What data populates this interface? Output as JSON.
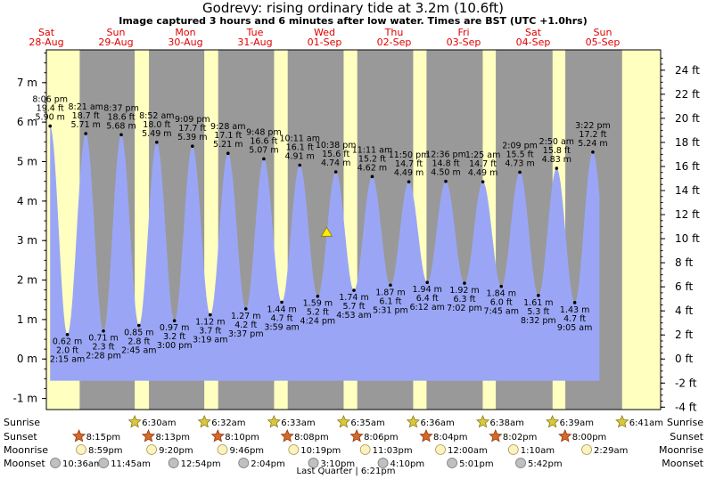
{
  "chart_data": {
    "type": "area",
    "title": "Godrevy: rising  ordinary tide at 3.2m (10.6ft)",
    "subtitle": "Image captured 3 hours and 6 minutes after low water. Times are BST (UTC +1.0hrs)",
    "y_left_ticks": [
      "-1 m",
      "0 m",
      "1 m",
      "2 m",
      "3 m",
      "4 m",
      "5 m",
      "6 m",
      "7 m"
    ],
    "y_left_values": [
      -1,
      0,
      1,
      2,
      3,
      4,
      5,
      6,
      7
    ],
    "y_right_ticks": [
      "-4 ft",
      "-2 ft",
      "0 ft",
      "2 ft",
      "4 ft",
      "6 ft",
      "8 ft",
      "10 ft",
      "12 ft",
      "14 ft",
      "16 ft",
      "18 ft",
      "20 ft",
      "22 ft",
      "24 ft"
    ],
    "y_right_values": [
      -4,
      -2,
      0,
      2,
      4,
      6,
      8,
      10,
      12,
      14,
      16,
      18,
      20,
      22,
      24
    ],
    "ylim_m": [
      -1.28,
      7.83
    ],
    "xlim_hours": [
      0,
      212
    ],
    "days": [
      {
        "name": "Sat",
        "date": "28-Aug"
      },
      {
        "name": "Sun",
        "date": "29-Aug"
      },
      {
        "name": "Mon",
        "date": "30-Aug"
      },
      {
        "name": "Tue",
        "date": "31-Aug"
      },
      {
        "name": "Wed",
        "date": "01-Sep"
      },
      {
        "name": "Thu",
        "date": "02-Sep"
      },
      {
        "name": "Fri",
        "date": "03-Sep"
      },
      {
        "name": "Sat",
        "date": "04-Sep"
      },
      {
        "name": "Sun",
        "date": "05-Sep"
      }
    ],
    "day_starts_h": [
      0,
      24,
      48,
      72,
      96,
      120,
      144,
      168,
      192
    ],
    "night_periods_h": [
      [
        11.5,
        30.5
      ],
      [
        35.4,
        54.5
      ],
      [
        59.3,
        78.6
      ],
      [
        83.3,
        102.6
      ],
      [
        107.3,
        126.6
      ],
      [
        131.2,
        150.6
      ],
      [
        155.1,
        174.7
      ],
      [
        179.1,
        198.7
      ]
    ],
    "series": [
      {
        "name": "Tide",
        "points": [
          {
            "h": 1.3,
            "m": 5.9,
            "time": "8:06 pm",
            "ft": "19.4 ft",
            "height": "5.90 m",
            "type": "high"
          },
          {
            "h": 7.25,
            "m": 0.62,
            "time": "2:15 am",
            "ft": "2.0 ft",
            "height": "0.62 m",
            "type": "low"
          },
          {
            "h": 13.6,
            "m": 5.71,
            "time": "8:21 am",
            "ft": "18.7 ft",
            "height": "5.71 m",
            "type": "high"
          },
          {
            "h": 19.7,
            "m": 0.71,
            "time": "2:28 pm",
            "ft": "2.3 ft",
            "height": "0.71 m",
            "type": "low"
          },
          {
            "h": 25.85,
            "m": 5.68,
            "time": "8:37 pm",
            "ft": "18.6 ft",
            "height": "5.68 m",
            "type": "high"
          },
          {
            "h": 31.95,
            "m": 0.85,
            "time": "2:45 am",
            "ft": "2.8 ft",
            "height": "0.85 m",
            "type": "low"
          },
          {
            "h": 38.1,
            "m": 5.49,
            "time": "8:52 am",
            "ft": "18.0 ft",
            "height": "5.49 m",
            "type": "high"
          },
          {
            "h": 44.2,
            "m": 0.97,
            "time": "3:00 pm",
            "ft": "3.2 ft",
            "height": "0.97 m",
            "type": "low"
          },
          {
            "h": 50.4,
            "m": 5.39,
            "time": "9:09 pm",
            "ft": "17.7 ft",
            "height": "5.39 m",
            "type": "high"
          },
          {
            "h": 56.55,
            "m": 1.12,
            "time": "3:19 am",
            "ft": "3.7 ft",
            "height": "1.12 m",
            "type": "low"
          },
          {
            "h": 62.7,
            "m": 5.21,
            "time": "9:28 am",
            "ft": "17.1 ft",
            "height": "5.21 m",
            "type": "high"
          },
          {
            "h": 68.85,
            "m": 1.27,
            "time": "3:37 pm",
            "ft": "4.2 ft",
            "height": "1.27 m",
            "type": "low"
          },
          {
            "h": 75.05,
            "m": 5.07,
            "time": "9:48 pm",
            "ft": "16.6 ft",
            "height": "5.07 m",
            "type": "high"
          },
          {
            "h": 81.25,
            "m": 1.44,
            "time": "3:59 am",
            "ft": "4.7 ft",
            "height": "1.44 m",
            "type": "low"
          },
          {
            "h": 87.45,
            "m": 4.91,
            "time": "10:11 am",
            "ft": "16.1 ft",
            "height": "4.91 m",
            "type": "high"
          },
          {
            "h": 93.65,
            "m": 1.59,
            "time": "4:24 pm",
            "ft": "5.2 ft",
            "height": "1.59 m",
            "type": "low"
          },
          {
            "h": 99.9,
            "m": 4.74,
            "time": "10:38 pm",
            "ft": "15.6 ft",
            "height": "4.74 m",
            "type": "high"
          },
          {
            "h": 106.15,
            "m": 1.74,
            "time": "4:53 am",
            "ft": "5.7 ft",
            "height": "1.74 m",
            "type": "low"
          },
          {
            "h": 112.45,
            "m": 4.62,
            "time": "11:11 am",
            "ft": "15.2 ft",
            "height": "4.62 m",
            "type": "high"
          },
          {
            "h": 118.75,
            "m": 1.87,
            "time": "5:31 pm",
            "ft": "6.1 ft",
            "height": "1.87 m",
            "type": "low"
          },
          {
            "h": 125.1,
            "m": 4.49,
            "time": "11:50 pm",
            "ft": "14.7 ft",
            "height": "4.49 m",
            "type": "high"
          },
          {
            "h": 131.45,
            "m": 1.94,
            "time": "6:12 am",
            "ft": "6.4 ft",
            "height": "1.94 m",
            "type": "low"
          },
          {
            "h": 137.85,
            "m": 4.5,
            "time": "12:36 pm",
            "ft": "14.8 ft",
            "height": "4.50 m",
            "type": "high"
          },
          {
            "h": 144.3,
            "m": 1.92,
            "time": "7:02 pm",
            "ft": "6.3 ft",
            "height": "1.92 m",
            "type": "low"
          },
          {
            "h": 150.65,
            "m": 4.49,
            "time": "1:25 am",
            "ft": "14.7 ft",
            "height": "4.49 m",
            "type": "high"
          },
          {
            "h": 157.0,
            "m": 1.84,
            "time": "7:45 am",
            "ft": "6.0 ft",
            "height": "1.84 m",
            "type": "low"
          },
          {
            "h": 163.4,
            "m": 4.73,
            "time": "2:09 pm",
            "ft": "15.5 ft",
            "height": "4.73 m",
            "type": "high"
          },
          {
            "h": 169.8,
            "m": 1.61,
            "time": "8:32 pm",
            "ft": "5.3 ft",
            "height": "1.61 m",
            "type": "low"
          },
          {
            "h": 176.1,
            "m": 4.83,
            "time": "2:50 am",
            "ft": "15.8 ft",
            "height": "4.83 m",
            "type": "high"
          },
          {
            "h": 182.35,
            "m": 1.43,
            "time": "9:05 am",
            "ft": "4.7 ft",
            "height": "1.43 m",
            "type": "low"
          },
          {
            "h": 188.6,
            "m": 5.24,
            "time": "3:22 pm",
            "ft": "17.2 ft",
            "height": "5.24 m",
            "type": "high"
          }
        ]
      }
    ],
    "current_marker": {
      "h": 96.75,
      "m": 3.2
    },
    "colors": {
      "day": "#ffffc0",
      "night": "#999999",
      "water": "#9aa6f5",
      "day_label": "#e00000",
      "marker": "#ffee00"
    },
    "rows": [
      {
        "label": "Sunrise",
        "icon": "sun-icon",
        "events": [
          {
            "h": 30.5,
            "text": "6:30am"
          },
          {
            "h": 54.53,
            "text": "6:32am"
          },
          {
            "h": 78.55,
            "text": "6:33am"
          },
          {
            "h": 102.58,
            "text": "6:35am"
          },
          {
            "h": 126.6,
            "text": "6:36am"
          },
          {
            "h": 150.63,
            "text": "6:38am"
          },
          {
            "h": 174.65,
            "text": "6:39am"
          },
          {
            "h": 198.68,
            "text": "6:41am"
          }
        ]
      },
      {
        "label": "Sunset",
        "icon": "sunset-icon",
        "events": [
          {
            "h": 11.25,
            "text": "8:15pm"
          },
          {
            "h": 35.22,
            "text": "8:13pm"
          },
          {
            "h": 59.17,
            "text": "8:10pm"
          },
          {
            "h": 83.13,
            "text": "8:08pm"
          },
          {
            "h": 107.1,
            "text": "8:06pm"
          },
          {
            "h": 131.07,
            "text": "8:04pm"
          },
          {
            "h": 155.03,
            "text": "8:02pm"
          },
          {
            "h": 179.0,
            "text": "8:00pm"
          }
        ]
      },
      {
        "label": "Moonrise",
        "icon": "moonrise-icon",
        "events": [
          {
            "h": 12.0,
            "text": "8:59pm"
          },
          {
            "h": 36.33,
            "text": "9:20pm"
          },
          {
            "h": 60.77,
            "text": "9:46pm"
          },
          {
            "h": 85.32,
            "text": "10:19pm"
          },
          {
            "h": 110.05,
            "text": "11:03pm"
          },
          {
            "h": 136.0,
            "text": "12:00am"
          },
          {
            "h": 161.17,
            "text": "1:10am"
          },
          {
            "h": 186.48,
            "text": "2:29am"
          }
        ]
      },
      {
        "label": "Moonset",
        "icon": "moonset-icon",
        "events": [
          {
            "h": 0.0,
            "text": "10:36am"
          },
          {
            "h": 19.75,
            "text": "11:45am"
          },
          {
            "h": 43.9,
            "text": "12:54pm"
          },
          {
            "h": 68.07,
            "text": "2:04pm"
          },
          {
            "h": 92.17,
            "text": "3:10pm"
          },
          {
            "h": 116.17,
            "text": "4:10pm"
          },
          {
            "h": 140.02,
            "text": "5:01pm"
          },
          {
            "h": 163.7,
            "text": "5:42pm"
          }
        ]
      }
    ],
    "moon_phase": "Last Quarter | 6:21pm"
  }
}
